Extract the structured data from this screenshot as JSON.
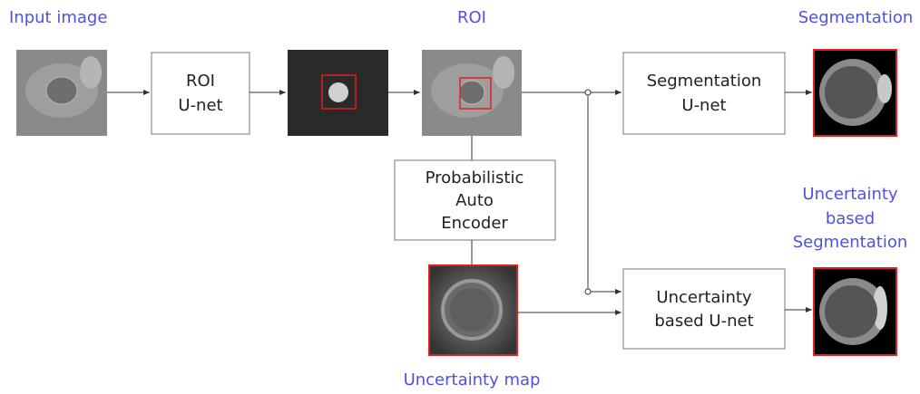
{
  "labels": {
    "input_image": "Input image",
    "roi": "ROI",
    "segmentation": "Segmentation",
    "uncertainty_segmentation": [
      "Uncertainty",
      "based",
      "Segmentation"
    ],
    "uncertainty_map": "Uncertainty map"
  },
  "boxes": {
    "roi_unet": [
      "ROI",
      "U-net"
    ],
    "segmentation_unet": [
      "Segmentation",
      "U-net"
    ],
    "autoencoder": [
      "Probabilistic",
      "Auto",
      "Encoder"
    ],
    "uncertainty_unet": [
      "Uncertainty",
      "based U-net"
    ]
  }
}
